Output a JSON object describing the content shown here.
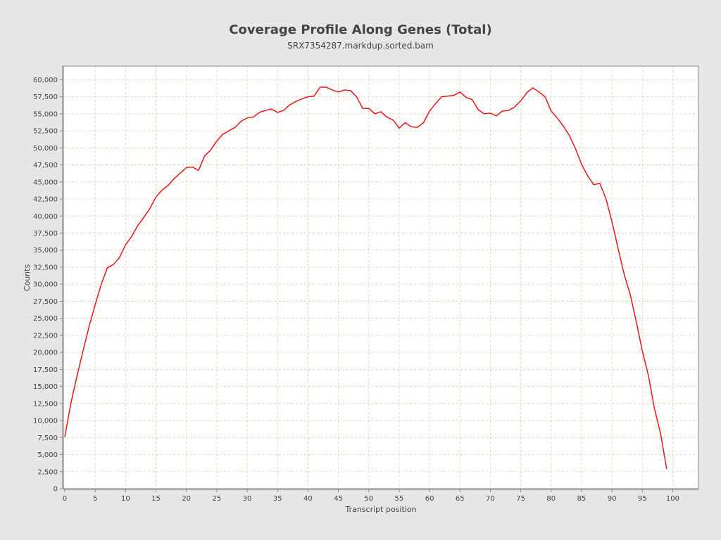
{
  "chart_data": {
    "type": "line",
    "title": "Coverage Profile Along Genes (Total)",
    "subtitle": "SRX7354287.markdup.sorted.bam",
    "xlabel": "Transcript position",
    "ylabel": "Counts",
    "xlim": [
      0,
      104
    ],
    "ylim": [
      0,
      62000
    ],
    "xticks": [
      0,
      5,
      10,
      15,
      20,
      25,
      30,
      35,
      40,
      45,
      50,
      55,
      60,
      65,
      70,
      75,
      80,
      85,
      90,
      95,
      100
    ],
    "yticks": [
      0,
      2500,
      5000,
      7500,
      10000,
      12500,
      15000,
      17500,
      20000,
      22500,
      25000,
      27500,
      30000,
      32500,
      35000,
      37500,
      40000,
      42500,
      45000,
      47500,
      50000,
      52500,
      55000,
      57500,
      60000
    ],
    "ytick_labels": [
      "0",
      "2,500",
      "5,000",
      "7,500",
      "10,000",
      "12,500",
      "15,000",
      "17,500",
      "20,000",
      "22,500",
      "25,000",
      "27,500",
      "30,000",
      "32,500",
      "35,000",
      "37,500",
      "40,000",
      "42,500",
      "45,000",
      "47,500",
      "50,000",
      "52,500",
      "55,000",
      "57,500",
      "60,000"
    ],
    "grid": true,
    "legend": "none",
    "colors": {
      "line": "#e8161b",
      "grid": "#f0c8a8",
      "plot_bg": "#ffffff",
      "page_bg": "#e6e6e6",
      "frame": "#888888",
      "text": "#444444"
    },
    "series": [
      {
        "x": [
          0,
          1,
          2,
          3,
          4,
          5,
          6,
          7,
          8,
          9,
          10,
          11,
          12,
          13,
          14,
          15,
          16,
          17,
          18,
          19,
          20,
          21,
          22,
          23,
          24,
          25,
          26,
          27,
          28,
          29,
          30,
          31,
          32,
          33,
          34,
          35,
          36,
          37,
          38,
          39,
          40,
          41,
          42,
          43,
          44,
          45,
          46,
          47,
          48,
          49,
          50,
          51,
          52,
          53,
          54,
          55,
          56,
          57,
          58,
          59,
          60,
          61,
          62,
          63,
          64,
          65,
          66,
          67,
          68,
          69,
          70,
          71,
          72,
          73,
          74,
          75,
          76,
          77,
          78,
          79,
          80,
          81,
          82,
          83,
          84,
          85,
          86,
          87,
          88,
          89,
          90,
          91,
          92,
          93,
          94,
          95,
          96,
          97,
          98,
          99
        ],
        "values": [
          7600,
          12500,
          16500,
          20200,
          23800,
          27000,
          30000,
          32400,
          32900,
          33900,
          35800,
          37000,
          38600,
          39800,
          41100,
          42800,
          43800,
          44500,
          45500,
          46300,
          47100,
          47200,
          46700,
          48800,
          49700,
          51000,
          52000,
          52500,
          53000,
          53900,
          54400,
          54500,
          55200,
          55500,
          55700,
          55200,
          55500,
          56300,
          56800,
          57200,
          57500,
          57600,
          58900,
          58900,
          58500,
          58200,
          58500,
          58400,
          57500,
          55800,
          55800,
          55000,
          55300,
          54500,
          54100,
          52900,
          53700,
          53100,
          53000,
          53700,
          55400,
          56500,
          57500,
          57600,
          57700,
          58200,
          57400,
          57100,
          55600,
          55000,
          55100,
          54700,
          55400,
          55500,
          56000,
          56900,
          58100,
          58800,
          58200,
          57500,
          55400,
          54400,
          53200,
          51800,
          49900,
          47600,
          45900,
          44600,
          44800,
          42600,
          39200,
          35300,
          31500,
          28500,
          24500,
          20200,
          16600,
          11700,
          8100,
          2900
        ]
      }
    ]
  }
}
